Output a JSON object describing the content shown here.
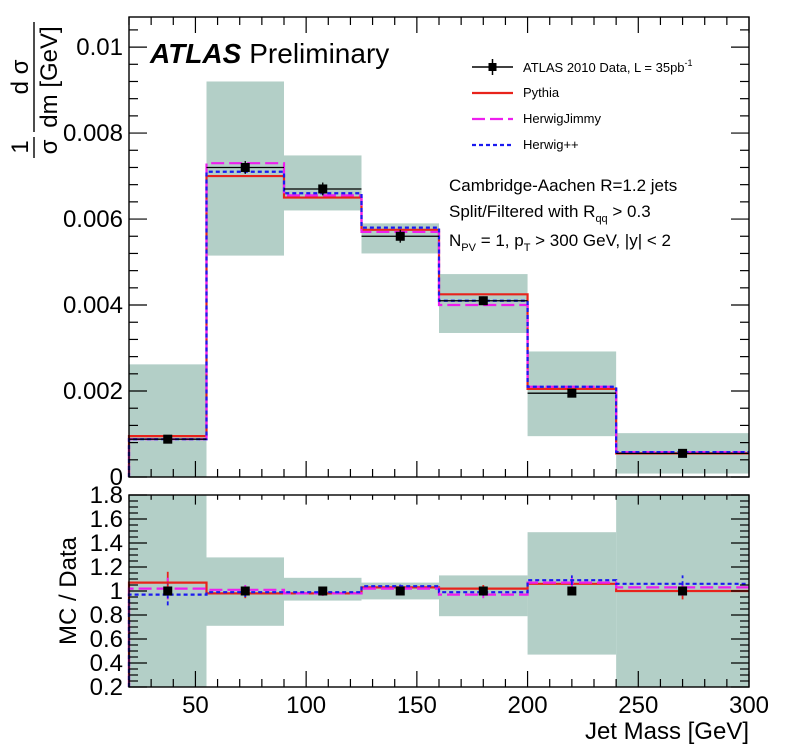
{
  "chart_data": {
    "type": "line",
    "xlabel": "Jet Mass [GeV]",
    "x_range": [
      20,
      300
    ],
    "x_ticks": [
      50,
      100,
      150,
      200,
      250,
      300
    ],
    "bin_edges": [
      20,
      55,
      90,
      125,
      160,
      200,
      240,
      300
    ],
    "upper_panel": {
      "ylabel_fraction_top": "1",
      "ylabel_fraction_bottom": "σ",
      "ylabel_derivative_top": "d σ",
      "ylabel_derivative_bottom": "dm [GeV]",
      "y_range": [
        0,
        0.0107
      ],
      "y_ticks": [
        {
          "value": 0,
          "label": "0"
        },
        {
          "value": 0.002,
          "label": "0.002"
        },
        {
          "value": 0.004,
          "label": "0.004"
        },
        {
          "value": 0.006,
          "label": "0.006"
        },
        {
          "value": 0.008,
          "label": "0.008"
        },
        {
          "value": 0.01,
          "label": "0.01"
        }
      ],
      "data_x": [
        37.5,
        72.5,
        107.5,
        142.5,
        180,
        220,
        270
      ],
      "data_y": [
        0.00088,
        0.0072,
        0.0067,
        0.0056,
        0.0041,
        0.00195,
        0.00055
      ],
      "data_err_y": [
        5e-05,
        0.00015,
        0.00015,
        0.00015,
        0.0001,
        8e-05,
        4e-05
      ],
      "syst_band_low": [
        0.0,
        0.00515,
        0.0062,
        0.0052,
        0.00335,
        0.00095,
        8e-05
      ],
      "syst_band_high": [
        0.00262,
        0.0092,
        0.00748,
        0.0059,
        0.00472,
        0.00292,
        0.00102
      ],
      "series": [
        {
          "name": "Pythia",
          "values": [
            0.00095,
            0.007,
            0.0065,
            0.00575,
            0.00425,
            0.00205,
            0.00055
          ]
        },
        {
          "name": "HerwigJimmy",
          "values": [
            0.00088,
            0.0073,
            0.00655,
            0.0057,
            0.004,
            0.0021,
            0.00058
          ]
        },
        {
          "name": "Herwig++",
          "values": [
            0.00088,
            0.0071,
            0.0066,
            0.0058,
            0.0041,
            0.0021,
            0.00058
          ]
        }
      ]
    },
    "lower_panel": {
      "ylabel": "MC / Data",
      "y_range": [
        0.2,
        1.8
      ],
      "y_ticks": [
        {
          "value": 0.2,
          "label": "0.2"
        },
        {
          "value": 0.4,
          "label": "0.4"
        },
        {
          "value": 0.6,
          "label": "0.6"
        },
        {
          "value": 0.8,
          "label": "0.8"
        },
        {
          "value": 1.0,
          "label": "1"
        },
        {
          "value": 1.2,
          "label": "1.2"
        },
        {
          "value": 1.4,
          "label": "1.4"
        },
        {
          "value": 1.6,
          "label": "1.6"
        },
        {
          "value": 1.8,
          "label": "1.8"
        }
      ],
      "syst_band_low": [
        0.2,
        0.71,
        0.92,
        0.93,
        0.79,
        0.47,
        0.2
      ],
      "syst_band_high": [
        1.8,
        1.28,
        1.11,
        1.07,
        1.13,
        1.49,
        1.8
      ],
      "series": [
        {
          "name": "Pythia",
          "values": [
            1.07,
            0.98,
            0.98,
            1.03,
            1.02,
            1.06,
            1.0
          ],
          "err": [
            0.09,
            0.04,
            0.02,
            0.02,
            0.03,
            0.04,
            0.07
          ]
        },
        {
          "name": "HerwigJimmy",
          "values": [
            1.02,
            1.01,
            0.98,
            1.02,
            0.97,
            1.07,
            1.03
          ],
          "err": [
            0.09,
            0.04,
            0.02,
            0.02,
            0.03,
            0.04,
            0.07
          ]
        },
        {
          "name": "Herwig++",
          "values": [
            0.97,
            0.99,
            0.99,
            1.04,
            0.99,
            1.09,
            1.06
          ],
          "err": [
            0.09,
            0.04,
            0.02,
            0.02,
            0.03,
            0.04,
            0.07
          ]
        }
      ],
      "data_points_x": [
        37.5,
        72.5,
        107.5,
        142.5,
        180,
        220,
        270
      ],
      "data_points_y": [
        1.0,
        1.0,
        1.0,
        1.0,
        1.0,
        1.0,
        1.0
      ]
    },
    "legend": {
      "placement": "top-right",
      "data_label": "ATLAS 2010 Data, L = 35pb",
      "data_label_sup": "-1",
      "entries": [
        "Pythia",
        "HerwigJimmy",
        "Herwig++"
      ]
    },
    "brand": {
      "bold": "ATLAS",
      "regular": "Preliminary"
    },
    "annotations": {
      "line1": "Cambridge-Aachen R=1.2 jets",
      "line2_prefix": "Split/Filtered with R",
      "line2_sub": "qq",
      "line2_suffix": " > 0.3",
      "line3_a": "N",
      "line3_a_sub": "PV",
      "line3_b": " = 1, p",
      "line3_b_sub": "T",
      "line3_c": " > 300 GeV, |y| < 2"
    },
    "colors": {
      "band": "#b3cfc7",
      "data": "#000000",
      "pythia": "#e8231b",
      "herwigjimmy": "#ee1eee",
      "herwigpp": "#1a1af0"
    }
  }
}
